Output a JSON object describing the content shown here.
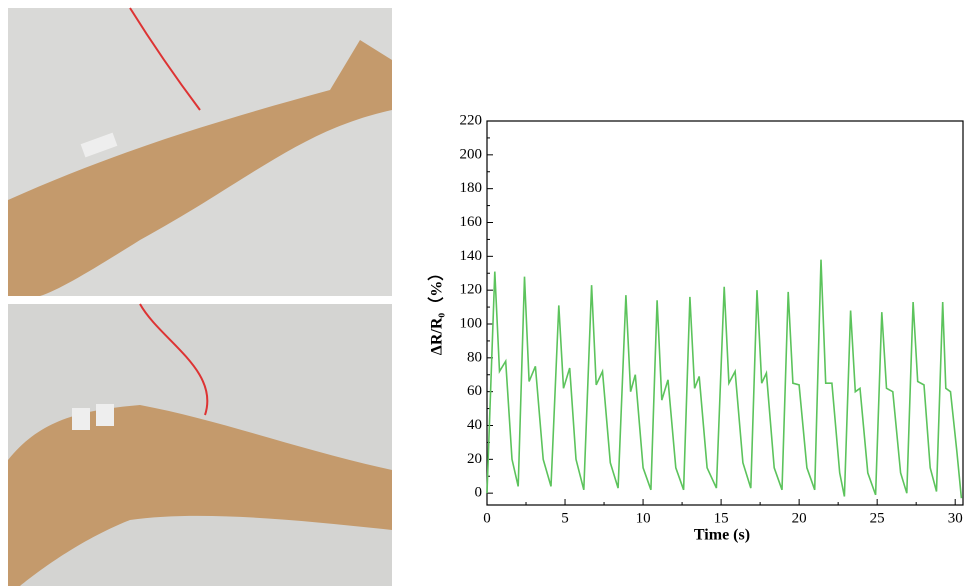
{
  "chart_data": {
    "type": "line",
    "xlabel": "Time (s)",
    "ylabel": "ΔR/R₀（%）",
    "xlim": [
      0,
      30.5
    ],
    "ylim": [
      -7,
      220
    ],
    "xticks": [
      0,
      5,
      10,
      15,
      20,
      25,
      30
    ],
    "yticks": [
      0,
      20,
      40,
      60,
      80,
      100,
      120,
      140,
      160,
      180,
      200,
      220
    ],
    "minor_ticks": true,
    "series": [
      {
        "color": "#5cc35c",
        "x": [
          0,
          0.5,
          0.8,
          1.2,
          1.6,
          2.0,
          2.4,
          2.7,
          3.1,
          3.6,
          4.1,
          4.6,
          4.9,
          5.3,
          5.7,
          6.2,
          6.7,
          7.0,
          7.4,
          7.9,
          8.4,
          8.9,
          9.2,
          9.5,
          10.0,
          10.5,
          10.9,
          11.2,
          11.6,
          12.1,
          12.6,
          13.0,
          13.3,
          13.6,
          14.1,
          14.7,
          15.2,
          15.5,
          15.9,
          16.4,
          16.9,
          17.3,
          17.6,
          17.9,
          18.4,
          18.9,
          19.3,
          19.6,
          20.0,
          20.5,
          21.0,
          21.4,
          21.7,
          22.1,
          22.6,
          22.9,
          23.3,
          23.6,
          23.9,
          24.4,
          24.9,
          25.3,
          25.6,
          26.0,
          26.5,
          26.9,
          27.3,
          27.6,
          28.0,
          28.4,
          28.8,
          29.2,
          29.4,
          29.7,
          30.1,
          30.4
        ],
        "values": [
          0,
          131,
          72,
          78,
          20,
          4,
          128,
          66,
          75,
          20,
          4,
          111,
          62,
          74,
          20,
          2,
          123,
          64,
          72,
          18,
          3,
          117,
          60,
          70,
          15,
          2,
          114,
          55,
          67,
          15,
          2,
          116,
          62,
          69,
          15,
          3,
          122,
          65,
          72,
          18,
          3,
          120,
          65,
          71,
          15,
          2,
          119,
          65,
          64,
          15,
          2,
          138,
          65,
          65,
          12,
          -2,
          108,
          60,
          62,
          12,
          -1,
          107,
          62,
          60,
          12,
          0,
          113,
          66,
          64,
          15,
          1,
          113,
          62,
          60,
          25,
          -3
        ]
      }
    ]
  }
}
